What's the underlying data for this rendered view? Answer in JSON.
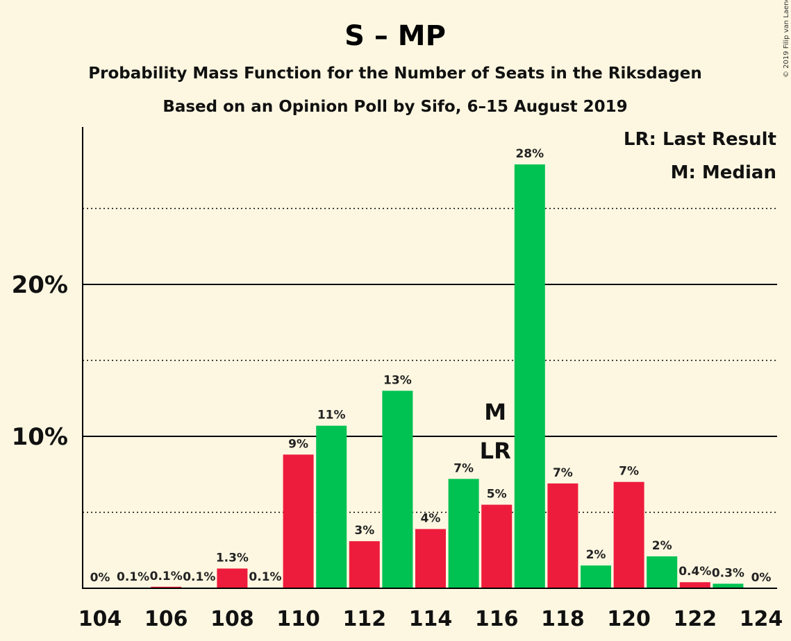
{
  "chart_data": {
    "type": "bar",
    "title": "S – MP",
    "subtitle": "Probability Mass Function for the Number of Seats in the Riksdagen",
    "subtitle2": "Based on an Opinion Poll by Sifo, 6–15 August 2019",
    "copyright": "© 2019 Filip van Laenen",
    "legend": [
      "LR: Last Result",
      "M: Median"
    ],
    "legend_position": "top-right",
    "xlabel": "",
    "ylabel": "",
    "x_tick_labels": [
      "104",
      "106",
      "108",
      "110",
      "112",
      "114",
      "116",
      "118",
      "120",
      "122",
      "124"
    ],
    "y_tick_labels": [
      "10%",
      "20%"
    ],
    "ylim": [
      0,
      30
    ],
    "grid_major": [
      10,
      20
    ],
    "grid_minor": [
      5,
      15,
      25
    ],
    "categories": [
      104,
      105,
      106,
      107,
      108,
      109,
      110,
      111,
      112,
      113,
      114,
      115,
      116,
      117,
      118,
      119,
      120,
      121,
      122,
      123,
      124
    ],
    "values": [
      0,
      0.05,
      0.1,
      0.05,
      1.3,
      0.05,
      8.8,
      10.7,
      3.1,
      13.0,
      3.9,
      7.2,
      5.5,
      27.9,
      6.9,
      1.5,
      7.0,
      2.1,
      0.4,
      0.3,
      0
    ],
    "labels": [
      "0%",
      "0.1%",
      "0.1%",
      "0.1%",
      "1.3%",
      "0.1%",
      "9%",
      "11%",
      "3%",
      "13%",
      "4%",
      "7%",
      "5%",
      "28%",
      "7%",
      "2%",
      "7%",
      "2%",
      "0.4%",
      "0.3%",
      "0%"
    ],
    "colors": {
      "even": "#ee1c3c",
      "odd": "#00c253"
    },
    "markers": [
      {
        "text": "M",
        "seat": 116
      },
      {
        "text": "LR",
        "seat": 116
      }
    ]
  }
}
